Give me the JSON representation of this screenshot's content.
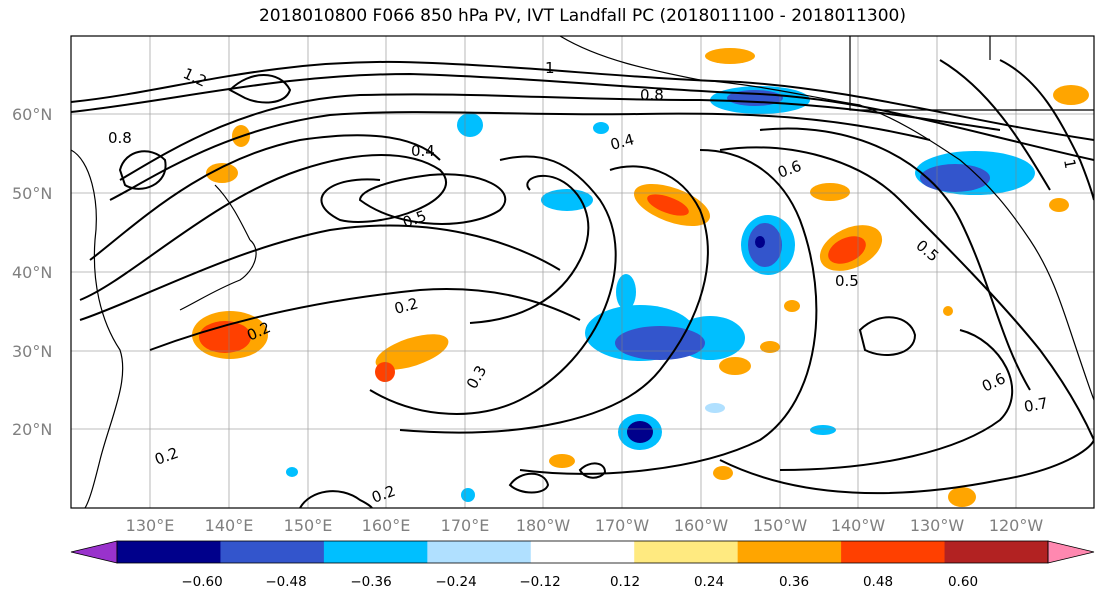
{
  "title": "2018010800 F066 850 hPa PV, IVT Landfall PC (2018011100 - 2018011300)",
  "map": {
    "lon_ticks": [
      "130°E",
      "140°E",
      "150°E",
      "160°E",
      "170°E",
      "180°W",
      "170°W",
      "160°W",
      "150°W",
      "140°W",
      "130°W",
      "120°W"
    ],
    "lat_ticks": [
      "60°N",
      "50°N",
      "40°N",
      "30°N",
      "20°N"
    ],
    "contour_labels": [
      "1.2",
      "1",
      "0.8",
      "0.4",
      "0.6",
      "0.5",
      "0.2",
      "0.3",
      "0.7",
      "0.2",
      "0.5",
      "0.4",
      "1",
      "0.8",
      "0.5",
      "0.6",
      "0.2",
      "0.2"
    ]
  },
  "colorbar": {
    "ticks": [
      "−0.60",
      "−0.48",
      "−0.36",
      "−0.24",
      "−0.12",
      "0.12",
      "0.24",
      "0.36",
      "0.48",
      "0.60"
    ],
    "colors": [
      "#9932cc",
      "#00008b",
      "#3355cc",
      "#00bfff",
      "#b0e0ff",
      "#ffffff",
      "#ffea80",
      "#ffa500",
      "#ff4000",
      "#b22222",
      "#ff88b0"
    ]
  }
}
